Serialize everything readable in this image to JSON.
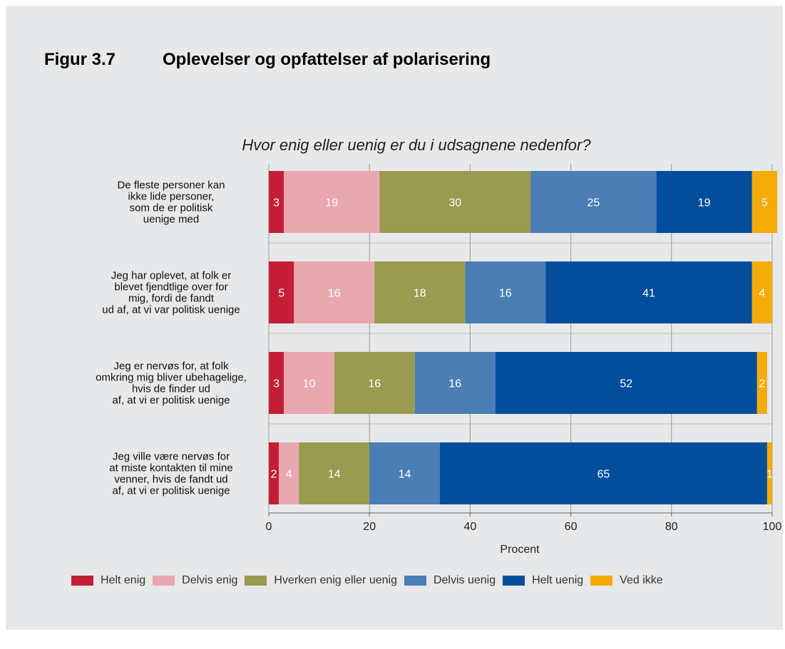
{
  "figure": {
    "number": "Figur 3.7",
    "title": "Oplevelser og opfattelser af polarisering"
  },
  "chart_data": {
    "type": "bar",
    "orientation": "horizontal",
    "stacked": true,
    "title": "Hvor enig eller uenig er du i udsagnene nedenfor?",
    "xlabel": "Procent",
    "ylabel": "",
    "xlim": [
      0,
      100
    ],
    "xticks": [
      "0",
      "20",
      "40",
      "60",
      "80",
      "100"
    ],
    "grid": true,
    "legend_position": "bottom",
    "categories": [
      [
        "De fleste personer kan",
        "ikke lide personer,",
        "som de er politisk",
        "uenige med"
      ],
      [
        "Jeg har oplevet, at folk er",
        "blevet fjendtlige over for",
        "mig, fordi de fandt",
        "ud af, at vi var politisk uenige"
      ],
      [
        "Jeg er nervøs for, at folk",
        "omkring mig bliver ubehagelige,",
        "hvis de finder ud",
        "af, at vi er politisk uenige"
      ],
      [
        "Jeg ville være nervøs for",
        "at miste kontakten til mine",
        "venner, hvis de fandt ud",
        "af, at vi er politisk uenige"
      ]
    ],
    "series": [
      {
        "name": "Helt enig",
        "color": "#c41d36",
        "values": [
          3,
          5,
          3,
          2
        ]
      },
      {
        "name": "Delvis enig",
        "color": "#e9a7b0",
        "values": [
          19,
          16,
          10,
          4
        ]
      },
      {
        "name": "Hverken enig eller uenig",
        "color": "#9a9a50",
        "values": [
          30,
          18,
          16,
          14
        ]
      },
      {
        "name": "Delvis uenig",
        "color": "#4a7eb5",
        "values": [
          25,
          16,
          16,
          14
        ]
      },
      {
        "name": "Helt uenig",
        "color": "#034d9d",
        "values": [
          19,
          41,
          52,
          65
        ]
      },
      {
        "name": "Ved ikke",
        "color": "#f5ab06",
        "values": [
          5,
          4,
          2,
          1
        ]
      }
    ]
  }
}
